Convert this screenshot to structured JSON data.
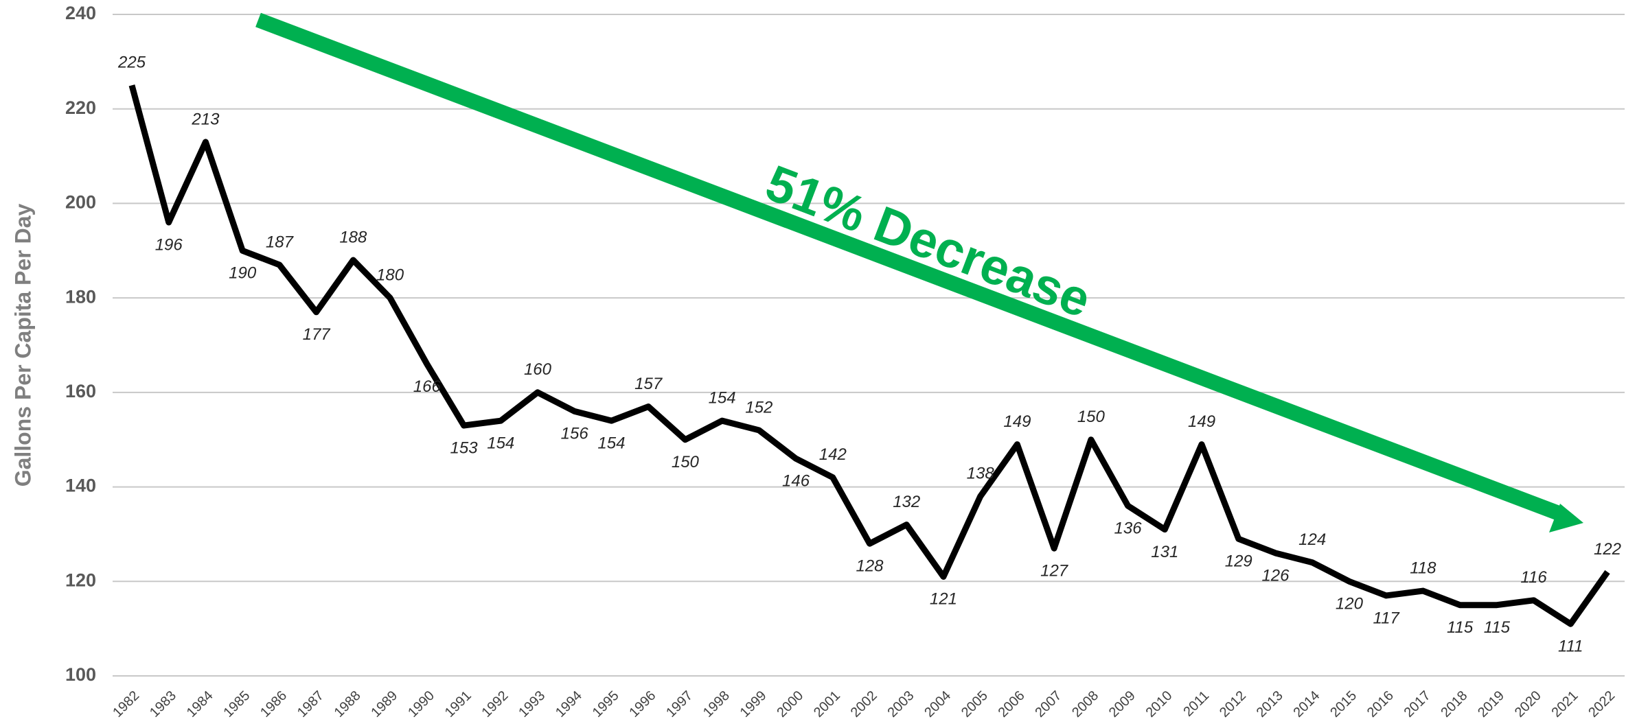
{
  "chart_data": {
    "type": "line",
    "y_label": "Gallons Per Capita Per Day",
    "annotation": "51% Decrease",
    "annotation_color": "#00b050",
    "categories": [
      "1982",
      "1983",
      "1984",
      "1985",
      "1986",
      "1987",
      "1988",
      "1989",
      "1990",
      "1991",
      "1992",
      "1993",
      "1994",
      "1995",
      "1996",
      "1997",
      "1998",
      "1999",
      "2000",
      "2001",
      "2002",
      "2003",
      "2004",
      "2005",
      "2006",
      "2007",
      "2008",
      "2009",
      "2010",
      "2011",
      "2012",
      "2013",
      "2014",
      "2015",
      "2016",
      "2017",
      "2018",
      "2019",
      "2020",
      "2021",
      "2022"
    ],
    "series": [
      {
        "name": "Gallons Per Capita Per Day",
        "color": "#000000",
        "values": [
          225,
          196,
          213,
          190,
          187,
          177,
          188,
          180,
          166,
          153,
          154,
          160,
          156,
          154,
          157,
          150,
          154,
          152,
          146,
          142,
          128,
          132,
          121,
          138,
          149,
          127,
          150,
          136,
          131,
          149,
          129,
          126,
          124,
          120,
          117,
          118,
          115,
          115,
          116,
          111,
          122
        ]
      }
    ],
    "ylim": [
      100,
      240
    ],
    "yticks": [
      100,
      120,
      140,
      160,
      180,
      200,
      220,
      240
    ],
    "grid": true
  }
}
